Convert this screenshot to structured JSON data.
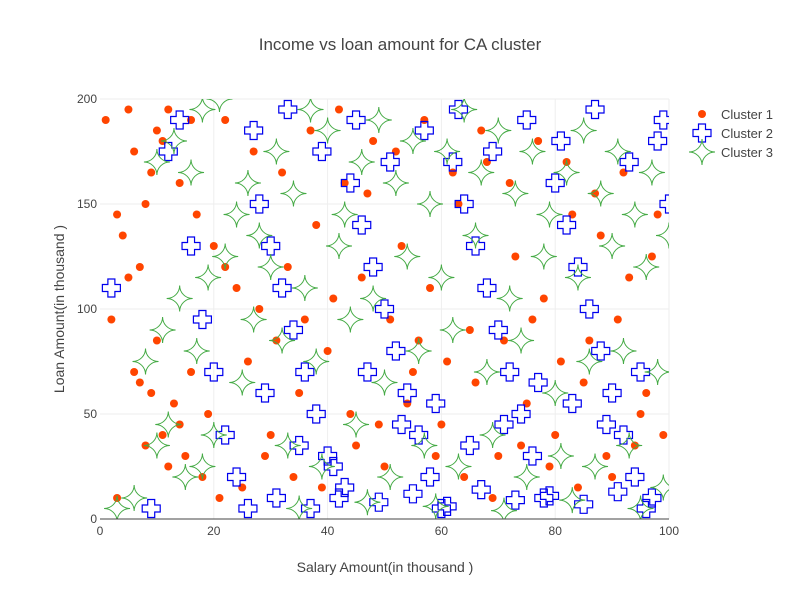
{
  "chart_data": {
    "type": "scatter",
    "title": "Income vs loan amount for CA cluster",
    "xlabel": "Salary Amount(in thousand )",
    "ylabel": "Loan Amount(in thousand )",
    "xlim": [
      0,
      100
    ],
    "ylim": [
      0,
      200
    ],
    "x_ticks": [
      0,
      20,
      40,
      60,
      80,
      100
    ],
    "y_ticks": [
      0,
      50,
      100,
      150,
      200
    ],
    "grid": true,
    "legend_position": "top-right",
    "series": [
      {
        "name": "Cluster 1",
        "marker": "circle",
        "color": "#ff4500",
        "points": [
          [
            2,
            95
          ],
          [
            3,
            10
          ],
          [
            5,
            115
          ],
          [
            6,
            70
          ],
          [
            7,
            65
          ],
          [
            8,
            35
          ],
          [
            9,
            60
          ],
          [
            10,
            85
          ],
          [
            11,
            40
          ],
          [
            12,
            25
          ],
          [
            13,
            55
          ],
          [
            14,
            45
          ],
          [
            15,
            30
          ],
          [
            16,
            70
          ],
          [
            18,
            20
          ],
          [
            19,
            50
          ],
          [
            21,
            10
          ],
          [
            4,
            135
          ],
          [
            8,
            150
          ],
          [
            10,
            185
          ],
          [
            12,
            195
          ],
          [
            6,
            175
          ],
          [
            9,
            165
          ],
          [
            14,
            160
          ],
          [
            17,
            145
          ],
          [
            20,
            130
          ],
          [
            22,
            120
          ],
          [
            24,
            110
          ],
          [
            3,
            145
          ],
          [
            7,
            120
          ],
          [
            25,
            15
          ],
          [
            30,
            40
          ],
          [
            35,
            60
          ],
          [
            40,
            80
          ],
          [
            45,
            35
          ],
          [
            50,
            25
          ],
          [
            55,
            70
          ],
          [
            60,
            45
          ],
          [
            65,
            90
          ],
          [
            70,
            30
          ],
          [
            75,
            55
          ],
          [
            80,
            40
          ],
          [
            85,
            65
          ],
          [
            90,
            20
          ],
          [
            95,
            50
          ],
          [
            99,
            40
          ],
          [
            28,
            100
          ],
          [
            33,
            120
          ],
          [
            38,
            140
          ],
          [
            43,
            160
          ],
          [
            48,
            180
          ],
          [
            53,
            130
          ],
          [
            58,
            110
          ],
          [
            63,
            150
          ],
          [
            68,
            170
          ],
          [
            73,
            125
          ],
          [
            78,
            105
          ],
          [
            83,
            145
          ],
          [
            88,
            135
          ],
          [
            93,
            115
          ],
          [
            97,
            125
          ],
          [
            26,
            75
          ],
          [
            31,
            85
          ],
          [
            36,
            95
          ],
          [
            41,
            105
          ],
          [
            46,
            115
          ],
          [
            51,
            95
          ],
          [
            56,
            85
          ],
          [
            61,
            75
          ],
          [
            66,
            65
          ],
          [
            71,
            85
          ],
          [
            76,
            95
          ],
          [
            81,
            75
          ],
          [
            86,
            85
          ],
          [
            91,
            95
          ],
          [
            96,
            60
          ],
          [
            29,
            30
          ],
          [
            34,
            20
          ],
          [
            39,
            15
          ],
          [
            44,
            50
          ],
          [
            49,
            45
          ],
          [
            54,
            55
          ],
          [
            59,
            30
          ],
          [
            64,
            20
          ],
          [
            69,
            10
          ],
          [
            74,
            35
          ],
          [
            79,
            25
          ],
          [
            84,
            15
          ],
          [
            89,
            30
          ],
          [
            94,
            35
          ],
          [
            22,
            190
          ],
          [
            27,
            175
          ],
          [
            32,
            165
          ],
          [
            37,
            185
          ],
          [
            42,
            195
          ],
          [
            47,
            155
          ],
          [
            52,
            175
          ],
          [
            57,
            190
          ],
          [
            62,
            165
          ],
          [
            67,
            185
          ],
          [
            72,
            160
          ],
          [
            77,
            180
          ],
          [
            82,
            170
          ],
          [
            87,
            155
          ],
          [
            92,
            165
          ],
          [
            98,
            145
          ],
          [
            1,
            190
          ],
          [
            5,
            195
          ],
          [
            11,
            180
          ],
          [
            16,
            190
          ]
        ]
      },
      {
        "name": "Cluster 2",
        "marker": "cross-open",
        "color": "#0000ee",
        "points": [
          [
            2,
            110
          ],
          [
            9,
            5
          ],
          [
            12,
            175
          ],
          [
            14,
            190
          ],
          [
            16,
            130
          ],
          [
            18,
            95
          ],
          [
            20,
            70
          ],
          [
            22,
            40
          ],
          [
            24,
            20
          ],
          [
            26,
            5
          ],
          [
            28,
            150
          ],
          [
            30,
            130
          ],
          [
            32,
            110
          ],
          [
            34,
            90
          ],
          [
            36,
            70
          ],
          [
            38,
            50
          ],
          [
            40,
            30
          ],
          [
            42,
            10
          ],
          [
            44,
            160
          ],
          [
            46,
            140
          ],
          [
            48,
            120
          ],
          [
            50,
            100
          ],
          [
            52,
            80
          ],
          [
            54,
            60
          ],
          [
            56,
            40
          ],
          [
            58,
            20
          ],
          [
            60,
            5
          ],
          [
            62,
            170
          ],
          [
            64,
            150
          ],
          [
            66,
            130
          ],
          [
            68,
            110
          ],
          [
            70,
            90
          ],
          [
            72,
            70
          ],
          [
            74,
            50
          ],
          [
            76,
            30
          ],
          [
            78,
            10
          ],
          [
            80,
            160
          ],
          [
            82,
            140
          ],
          [
            84,
            120
          ],
          [
            86,
            100
          ],
          [
            88,
            80
          ],
          [
            90,
            60
          ],
          [
            92,
            40
          ],
          [
            94,
            20
          ],
          [
            96,
            5
          ],
          [
            98,
            180
          ],
          [
            100,
            150
          ],
          [
            27,
            185
          ],
          [
            33,
            195
          ],
          [
            39,
            175
          ],
          [
            45,
            190
          ],
          [
            51,
            170
          ],
          [
            57,
            185
          ],
          [
            63,
            195
          ],
          [
            69,
            175
          ],
          [
            75,
            190
          ],
          [
            81,
            180
          ],
          [
            87,
            195
          ],
          [
            93,
            170
          ],
          [
            99,
            190
          ],
          [
            29,
            60
          ],
          [
            35,
            35
          ],
          [
            41,
            25
          ],
          [
            47,
            70
          ],
          [
            53,
            45
          ],
          [
            59,
            55
          ],
          [
            65,
            35
          ],
          [
            71,
            45
          ],
          [
            77,
            65
          ],
          [
            83,
            55
          ],
          [
            89,
            45
          ],
          [
            95,
            70
          ],
          [
            31,
            10
          ],
          [
            37,
            5
          ],
          [
            43,
            15
          ],
          [
            49,
            8
          ],
          [
            55,
            12
          ],
          [
            61,
            6
          ],
          [
            67,
            14
          ],
          [
            73,
            9
          ],
          [
            79,
            11
          ],
          [
            85,
            7
          ],
          [
            91,
            13
          ],
          [
            97,
            10
          ]
        ]
      },
      {
        "name": "Cluster 3",
        "marker": "star-diamond-open",
        "color": "#44aa44",
        "points": [
          [
            3,
            5
          ],
          [
            6,
            10
          ],
          [
            10,
            35
          ],
          [
            12,
            45
          ],
          [
            15,
            20
          ],
          [
            18,
            25
          ],
          [
            20,
            40
          ],
          [
            8,
            75
          ],
          [
            11,
            90
          ],
          [
            14,
            105
          ],
          [
            17,
            80
          ],
          [
            19,
            115
          ],
          [
            22,
            125
          ],
          [
            24,
            145
          ],
          [
            26,
            160
          ],
          [
            10,
            170
          ],
          [
            13,
            180
          ],
          [
            16,
            165
          ],
          [
            18,
            195
          ],
          [
            21,
            200
          ],
          [
            28,
            135
          ],
          [
            31,
            175
          ],
          [
            34,
            155
          ],
          [
            37,
            195
          ],
          [
            40,
            185
          ],
          [
            43,
            145
          ],
          [
            46,
            170
          ],
          [
            49,
            190
          ],
          [
            52,
            160
          ],
          [
            55,
            180
          ],
          [
            58,
            150
          ],
          [
            61,
            175
          ],
          [
            64,
            195
          ],
          [
            67,
            165
          ],
          [
            70,
            185
          ],
          [
            73,
            155
          ],
          [
            76,
            175
          ],
          [
            79,
            145
          ],
          [
            82,
            165
          ],
          [
            85,
            185
          ],
          [
            88,
            155
          ],
          [
            91,
            175
          ],
          [
            94,
            145
          ],
          [
            97,
            165
          ],
          [
            100,
            135
          ],
          [
            30,
            120
          ],
          [
            36,
            110
          ],
          [
            42,
            130
          ],
          [
            48,
            105
          ],
          [
            54,
            125
          ],
          [
            60,
            115
          ],
          [
            66,
            135
          ],
          [
            72,
            105
          ],
          [
            78,
            125
          ],
          [
            84,
            115
          ],
          [
            90,
            130
          ],
          [
            96,
            120
          ],
          [
            32,
            85
          ],
          [
            38,
            75
          ],
          [
            44,
            95
          ],
          [
            50,
            65
          ],
          [
            56,
            80
          ],
          [
            62,
            90
          ],
          [
            68,
            70
          ],
          [
            74,
            85
          ],
          [
            80,
            60
          ],
          [
            86,
            75
          ],
          [
            92,
            80
          ],
          [
            98,
            70
          ],
          [
            33,
            35
          ],
          [
            39,
            25
          ],
          [
            45,
            45
          ],
          [
            51,
            20
          ],
          [
            57,
            35
          ],
          [
            63,
            25
          ],
          [
            69,
            40
          ],
          [
            75,
            20
          ],
          [
            81,
            30
          ],
          [
            87,
            25
          ],
          [
            93,
            35
          ],
          [
            99,
            15
          ],
          [
            35,
            5
          ],
          [
            47,
            8
          ],
          [
            59,
            6
          ],
          [
            71,
            4
          ],
          [
            83,
            9
          ],
          [
            95,
            5
          ],
          [
            25,
            65
          ],
          [
            27,
            95
          ]
        ]
      }
    ]
  }
}
